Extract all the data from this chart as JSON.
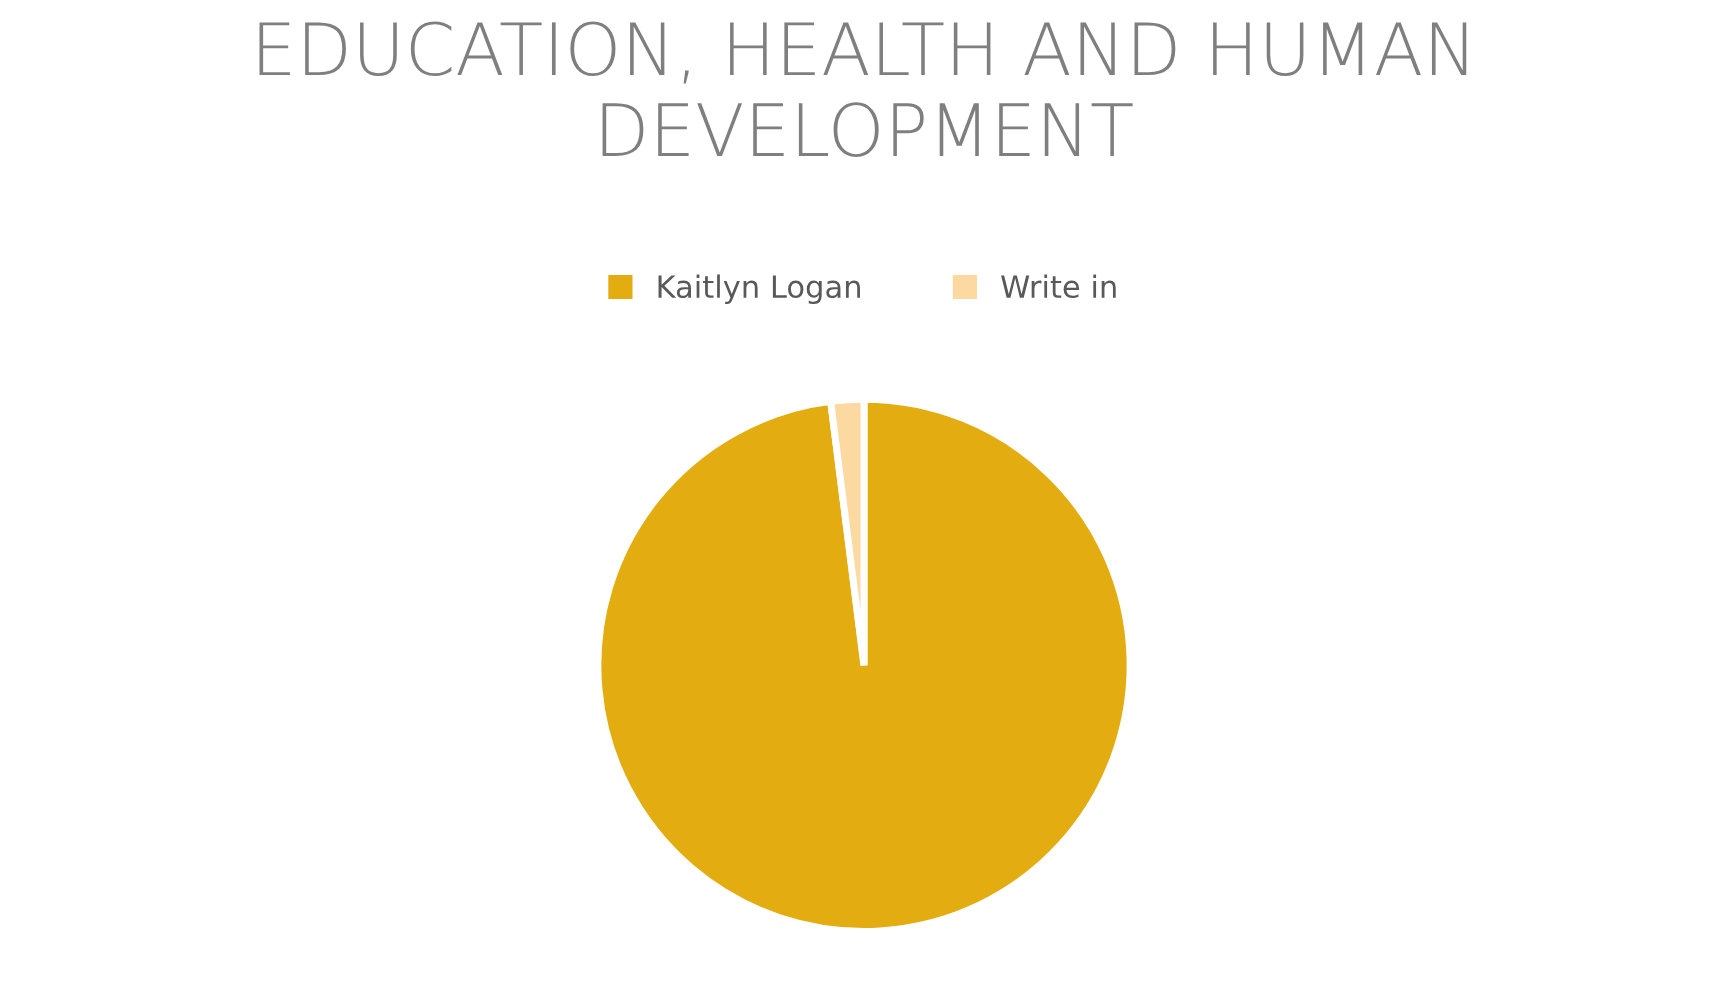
{
  "chart_data": {
    "type": "pie",
    "title": "EDUCATION, HEALTH AND HUMAN DEVELOPMENT",
    "categories": [
      "Kaitlyn Logan",
      "Write in"
    ],
    "values": [
      98,
      2
    ],
    "colors": [
      "#e3ad12",
      "#fcd9a0"
    ],
    "legend": "top"
  }
}
